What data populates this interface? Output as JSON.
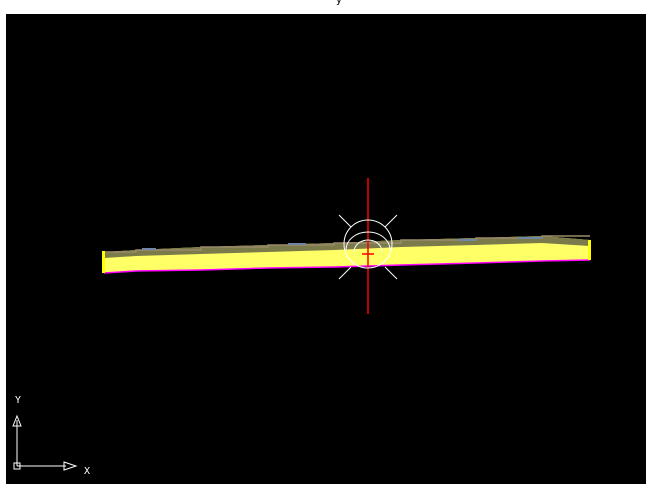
{
  "window": {
    "title_fragment": "y"
  },
  "viewport": {
    "background": "#000000",
    "crosshair_color": "#ff0000",
    "target_color": "#ffffff",
    "beam_colors": {
      "main": "#ffff66",
      "edge_top": "#7a7a4a",
      "edge_bottom": "#ff00ff",
      "end_cap": "#ffff00"
    }
  },
  "ucs_icon": {
    "x_label": "X",
    "y_label": "Y",
    "color": "#ffffff"
  }
}
